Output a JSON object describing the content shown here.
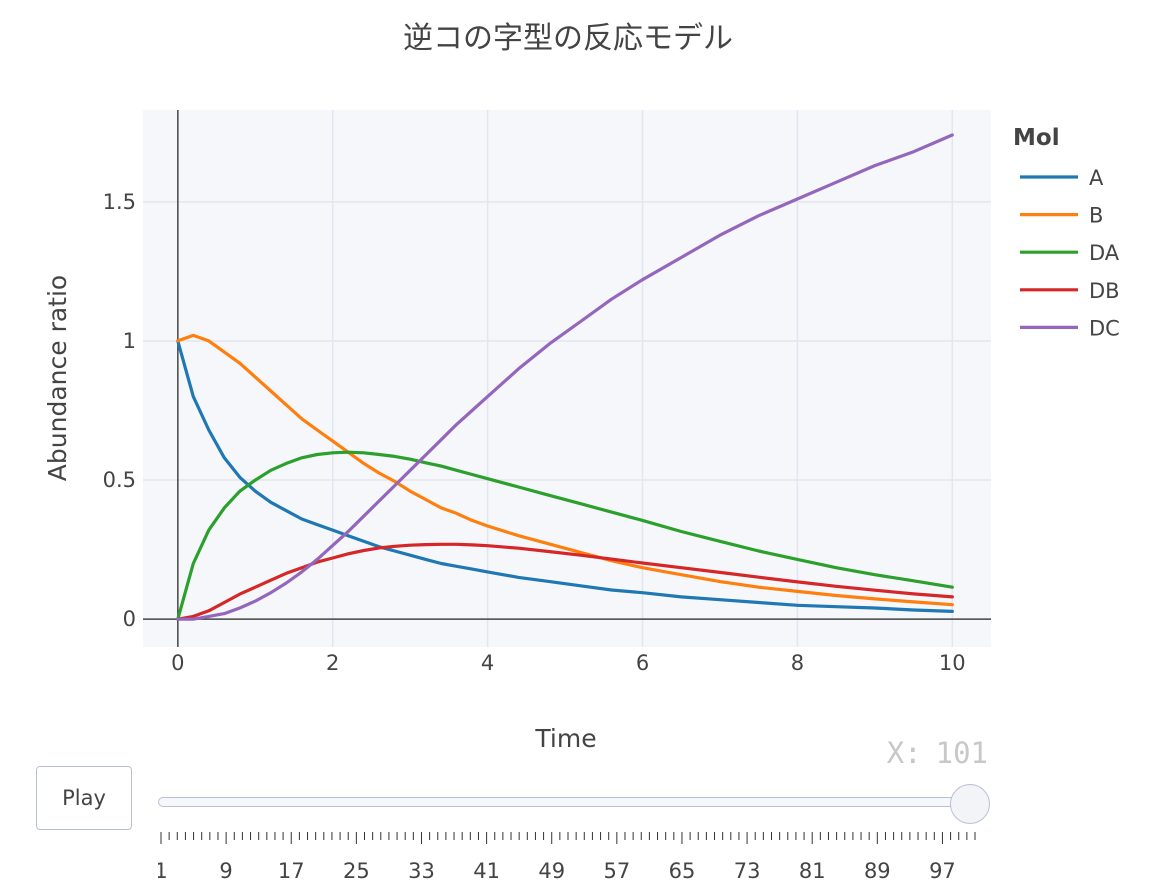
{
  "chart_data": {
    "type": "line",
    "title": "逆コの字型の反応モデル",
    "xlabel": "Time",
    "ylabel": "Abundance ratio",
    "xlim": [
      -0.45,
      10.5
    ],
    "ylim": [
      -0.1,
      1.83
    ],
    "x_ticks": [
      0,
      2,
      4,
      6,
      8,
      10
    ],
    "y_ticks": [
      0,
      0.5,
      1,
      1.5
    ],
    "y_tick_labels": [
      "0",
      "0.5",
      "1",
      "1.5"
    ],
    "grid": true,
    "legend_title": "Mol",
    "legend_position": "right",
    "x": [
      0,
      0.2,
      0.4,
      0.6,
      0.8,
      1,
      1.2,
      1.4,
      1.6,
      1.8,
      2,
      2.2,
      2.4,
      2.6,
      2.8,
      3,
      3.2,
      3.4,
      3.6,
      3.8,
      4,
      4.4,
      4.8,
      5.2,
      5.6,
      6,
      6.5,
      7,
      7.5,
      8,
      8.5,
      9,
      9.5,
      10
    ],
    "series": [
      {
        "name": "A",
        "color": "#1f77b4",
        "values": [
          1.0,
          0.8,
          0.68,
          0.58,
          0.51,
          0.46,
          0.42,
          0.39,
          0.36,
          0.34,
          0.32,
          0.3,
          0.28,
          0.26,
          0.245,
          0.23,
          0.215,
          0.2,
          0.19,
          0.18,
          0.17,
          0.15,
          0.135,
          0.12,
          0.105,
          0.095,
          0.08,
          0.07,
          0.06,
          0.05,
          0.045,
          0.04,
          0.033,
          0.028
        ]
      },
      {
        "name": "B",
        "color": "#ff7f0e",
        "values": [
          1.0,
          1.02,
          1.0,
          0.96,
          0.92,
          0.87,
          0.82,
          0.77,
          0.72,
          0.68,
          0.64,
          0.6,
          0.56,
          0.525,
          0.495,
          0.46,
          0.43,
          0.4,
          0.38,
          0.355,
          0.335,
          0.3,
          0.27,
          0.24,
          0.21,
          0.185,
          0.16,
          0.135,
          0.115,
          0.1,
          0.085,
          0.073,
          0.062,
          0.052
        ]
      },
      {
        "name": "DA",
        "color": "#2ca02c",
        "values": [
          0.0,
          0.2,
          0.32,
          0.4,
          0.46,
          0.5,
          0.535,
          0.56,
          0.58,
          0.592,
          0.598,
          0.6,
          0.598,
          0.592,
          0.585,
          0.575,
          0.562,
          0.55,
          0.535,
          0.52,
          0.505,
          0.475,
          0.445,
          0.415,
          0.385,
          0.355,
          0.315,
          0.28,
          0.245,
          0.215,
          0.185,
          0.16,
          0.138,
          0.115
        ]
      },
      {
        "name": "DB",
        "color": "#d62728",
        "values": [
          0.0,
          0.01,
          0.03,
          0.06,
          0.09,
          0.115,
          0.14,
          0.165,
          0.185,
          0.205,
          0.22,
          0.235,
          0.247,
          0.256,
          0.262,
          0.266,
          0.268,
          0.269,
          0.269,
          0.267,
          0.264,
          0.255,
          0.243,
          0.23,
          0.216,
          0.202,
          0.185,
          0.168,
          0.151,
          0.134,
          0.118,
          0.104,
          0.091,
          0.08
        ]
      },
      {
        "name": "DC",
        "color": "#9467bd",
        "values": [
          0.0,
          0.0,
          0.01,
          0.02,
          0.04,
          0.065,
          0.095,
          0.13,
          0.17,
          0.215,
          0.265,
          0.315,
          0.37,
          0.425,
          0.48,
          0.535,
          0.59,
          0.645,
          0.7,
          0.75,
          0.8,
          0.9,
          0.99,
          1.07,
          1.15,
          1.22,
          1.3,
          1.38,
          1.45,
          1.51,
          1.57,
          1.63,
          1.68,
          1.74
        ]
      }
    ]
  },
  "controls": {
    "play_label": "Play",
    "slider_prefix": "X:",
    "slider_value": "101",
    "slider_ticks": [
      "1",
      "9",
      "17",
      "25",
      "33",
      "41",
      "49",
      "57",
      "65",
      "73",
      "81",
      "89",
      "97"
    ]
  }
}
